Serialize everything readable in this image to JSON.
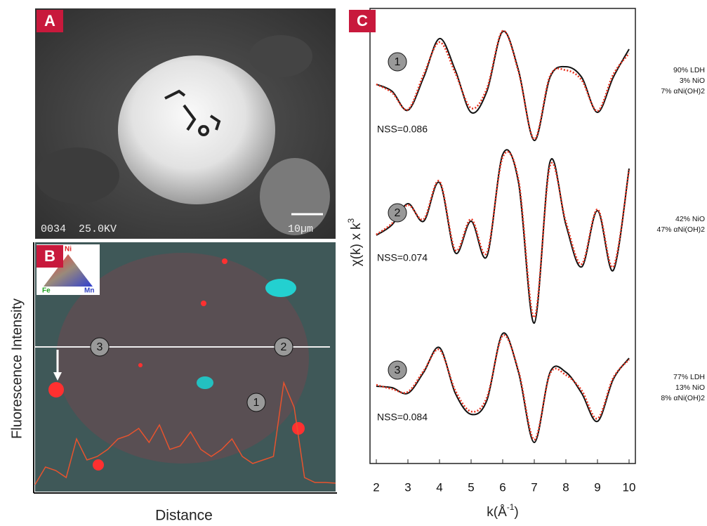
{
  "panels": {
    "a": {
      "label": "A",
      "info_text": "0034  25.0KV",
      "scale_bar": "10µm"
    },
    "b": {
      "label": "B",
      "triangle": {
        "top": "Ni",
        "left": "Fe",
        "right": "Mn"
      },
      "y_label": "Fluorescence Intensity",
      "x_label": "Distance",
      "spot_labels": [
        "1",
        "2",
        "3"
      ],
      "trace_color": "#e8532e",
      "trace": [
        5,
        30,
        25,
        15,
        70,
        40,
        45,
        55,
        70,
        75,
        85,
        65,
        90,
        55,
        60,
        80,
        55,
        45,
        55,
        70,
        45,
        35,
        40,
        45,
        150,
        115,
        15,
        8,
        8,
        7
      ]
    }
  },
  "chart_data": {
    "type": "line",
    "panel_label": "C",
    "y_label": "χ(k) x k",
    "y_label_sup": "3",
    "x_label": "k(Å",
    "x_label_sup": "-1",
    "x_label_end": ")",
    "x": [
      2,
      2.5,
      3,
      3.5,
      4,
      4.5,
      5,
      5.5,
      6,
      6.5,
      7,
      7.5,
      8,
      8.5,
      9,
      9.5,
      10
    ],
    "xlim": [
      1.8,
      10.2
    ],
    "xticks": [
      2,
      3,
      4,
      5,
      6,
      7,
      8,
      9,
      10
    ],
    "data_color": "#111111",
    "fit_color": "#e8321e",
    "spectra": [
      {
        "marker": "1",
        "nss": "NSS=0.086",
        "composition": [
          "90% LDH",
          "3% NiO",
          "7% αNi(OH)2"
        ],
        "data": [
          0,
          -0.5,
          -1.85,
          0.5,
          3.25,
          1,
          -2,
          -0.5,
          3.75,
          1,
          -4,
          0.5,
          1.25,
          0.5,
          -2,
          0.5,
          2.5
        ],
        "fit": [
          0,
          -0.6,
          -1.8,
          0.7,
          3.0,
          0.8,
          -1.7,
          -0.3,
          3.8,
          0.9,
          -3.9,
          0.6,
          1.0,
          0.3,
          -1.9,
          0.7,
          2.2
        ]
      },
      {
        "marker": "2",
        "nss": "NSS=0.074",
        "composition": [
          "42% NiO",
          "47% αNi(OH)2"
        ],
        "data": [
          -0.75,
          0,
          1.5,
          0.25,
          3,
          -2,
          0.25,
          -2.25,
          5,
          3,
          -7,
          4.5,
          0,
          -3,
          1,
          -3.25,
          4
        ],
        "fit": [
          -0.7,
          0.1,
          1.4,
          0.4,
          3.1,
          -1.8,
          0.4,
          -2.0,
          4.8,
          3.2,
          -6.6,
          4.2,
          0.2,
          -2.8,
          1.1,
          -3.0,
          3.9
        ]
      },
      {
        "marker": "3",
        "nss": "NSS=0.084",
        "composition": [
          "77% LDH",
          "13% NiO",
          "8% αNi(OH)2"
        ],
        "data": [
          0,
          -0.1,
          -0.5,
          1,
          2.75,
          -0.5,
          -2,
          -1,
          3.75,
          1,
          -4,
          1,
          1,
          -0.5,
          -2.5,
          0.5,
          2
        ],
        "fit": [
          0.1,
          -0.2,
          -0.4,
          1.1,
          2.6,
          -0.3,
          -1.8,
          -0.8,
          3.6,
          1.1,
          -3.8,
          0.9,
          0.8,
          -0.3,
          -2.3,
          0.6,
          1.9
        ]
      }
    ]
  }
}
